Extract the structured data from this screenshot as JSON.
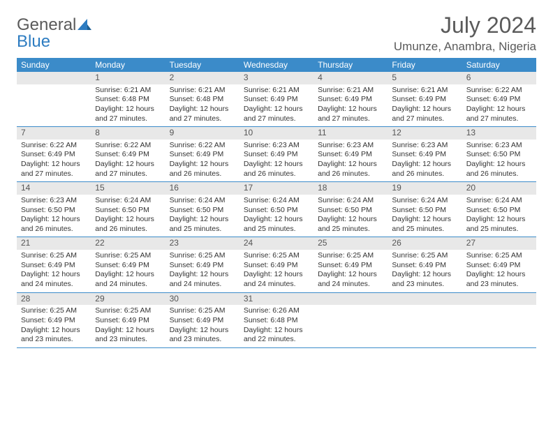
{
  "logo": {
    "word1": "General",
    "word2": "Blue"
  },
  "title": "July 2024",
  "location": "Umunze, Anambra, Nigeria",
  "colors": {
    "header_bg": "#3b8bc9",
    "header_text": "#ffffff",
    "daynum_bg": "#e8e8e8",
    "week_divider": "#3b8bc9",
    "logo_gray": "#5a5a5a",
    "logo_blue": "#2d7cc1",
    "body_text": "#333333",
    "background": "#ffffff"
  },
  "typography": {
    "title_fontsize": 32,
    "location_fontsize": 17,
    "weekday_fontsize": 12,
    "daynum_fontsize": 12,
    "body_fontsize": 10.5,
    "font_family": "Arial"
  },
  "weekdays": [
    "Sunday",
    "Monday",
    "Tuesday",
    "Wednesday",
    "Thursday",
    "Friday",
    "Saturday"
  ],
  "weeks": [
    [
      {
        "n": "",
        "sr": "",
        "ss": "",
        "dl": ""
      },
      {
        "n": "1",
        "sr": "Sunrise: 6:21 AM",
        "ss": "Sunset: 6:48 PM",
        "dl": "Daylight: 12 hours and 27 minutes."
      },
      {
        "n": "2",
        "sr": "Sunrise: 6:21 AM",
        "ss": "Sunset: 6:48 PM",
        "dl": "Daylight: 12 hours and 27 minutes."
      },
      {
        "n": "3",
        "sr": "Sunrise: 6:21 AM",
        "ss": "Sunset: 6:49 PM",
        "dl": "Daylight: 12 hours and 27 minutes."
      },
      {
        "n": "4",
        "sr": "Sunrise: 6:21 AM",
        "ss": "Sunset: 6:49 PM",
        "dl": "Daylight: 12 hours and 27 minutes."
      },
      {
        "n": "5",
        "sr": "Sunrise: 6:21 AM",
        "ss": "Sunset: 6:49 PM",
        "dl": "Daylight: 12 hours and 27 minutes."
      },
      {
        "n": "6",
        "sr": "Sunrise: 6:22 AM",
        "ss": "Sunset: 6:49 PM",
        "dl": "Daylight: 12 hours and 27 minutes."
      }
    ],
    [
      {
        "n": "7",
        "sr": "Sunrise: 6:22 AM",
        "ss": "Sunset: 6:49 PM",
        "dl": "Daylight: 12 hours and 27 minutes."
      },
      {
        "n": "8",
        "sr": "Sunrise: 6:22 AM",
        "ss": "Sunset: 6:49 PM",
        "dl": "Daylight: 12 hours and 27 minutes."
      },
      {
        "n": "9",
        "sr": "Sunrise: 6:22 AM",
        "ss": "Sunset: 6:49 PM",
        "dl": "Daylight: 12 hours and 26 minutes."
      },
      {
        "n": "10",
        "sr": "Sunrise: 6:23 AM",
        "ss": "Sunset: 6:49 PM",
        "dl": "Daylight: 12 hours and 26 minutes."
      },
      {
        "n": "11",
        "sr": "Sunrise: 6:23 AM",
        "ss": "Sunset: 6:49 PM",
        "dl": "Daylight: 12 hours and 26 minutes."
      },
      {
        "n": "12",
        "sr": "Sunrise: 6:23 AM",
        "ss": "Sunset: 6:49 PM",
        "dl": "Daylight: 12 hours and 26 minutes."
      },
      {
        "n": "13",
        "sr": "Sunrise: 6:23 AM",
        "ss": "Sunset: 6:50 PM",
        "dl": "Daylight: 12 hours and 26 minutes."
      }
    ],
    [
      {
        "n": "14",
        "sr": "Sunrise: 6:23 AM",
        "ss": "Sunset: 6:50 PM",
        "dl": "Daylight: 12 hours and 26 minutes."
      },
      {
        "n": "15",
        "sr": "Sunrise: 6:24 AM",
        "ss": "Sunset: 6:50 PM",
        "dl": "Daylight: 12 hours and 26 minutes."
      },
      {
        "n": "16",
        "sr": "Sunrise: 6:24 AM",
        "ss": "Sunset: 6:50 PM",
        "dl": "Daylight: 12 hours and 25 minutes."
      },
      {
        "n": "17",
        "sr": "Sunrise: 6:24 AM",
        "ss": "Sunset: 6:50 PM",
        "dl": "Daylight: 12 hours and 25 minutes."
      },
      {
        "n": "18",
        "sr": "Sunrise: 6:24 AM",
        "ss": "Sunset: 6:50 PM",
        "dl": "Daylight: 12 hours and 25 minutes."
      },
      {
        "n": "19",
        "sr": "Sunrise: 6:24 AM",
        "ss": "Sunset: 6:50 PM",
        "dl": "Daylight: 12 hours and 25 minutes."
      },
      {
        "n": "20",
        "sr": "Sunrise: 6:24 AM",
        "ss": "Sunset: 6:50 PM",
        "dl": "Daylight: 12 hours and 25 minutes."
      }
    ],
    [
      {
        "n": "21",
        "sr": "Sunrise: 6:25 AM",
        "ss": "Sunset: 6:49 PM",
        "dl": "Daylight: 12 hours and 24 minutes."
      },
      {
        "n": "22",
        "sr": "Sunrise: 6:25 AM",
        "ss": "Sunset: 6:49 PM",
        "dl": "Daylight: 12 hours and 24 minutes."
      },
      {
        "n": "23",
        "sr": "Sunrise: 6:25 AM",
        "ss": "Sunset: 6:49 PM",
        "dl": "Daylight: 12 hours and 24 minutes."
      },
      {
        "n": "24",
        "sr": "Sunrise: 6:25 AM",
        "ss": "Sunset: 6:49 PM",
        "dl": "Daylight: 12 hours and 24 minutes."
      },
      {
        "n": "25",
        "sr": "Sunrise: 6:25 AM",
        "ss": "Sunset: 6:49 PM",
        "dl": "Daylight: 12 hours and 24 minutes."
      },
      {
        "n": "26",
        "sr": "Sunrise: 6:25 AM",
        "ss": "Sunset: 6:49 PM",
        "dl": "Daylight: 12 hours and 23 minutes."
      },
      {
        "n": "27",
        "sr": "Sunrise: 6:25 AM",
        "ss": "Sunset: 6:49 PM",
        "dl": "Daylight: 12 hours and 23 minutes."
      }
    ],
    [
      {
        "n": "28",
        "sr": "Sunrise: 6:25 AM",
        "ss": "Sunset: 6:49 PM",
        "dl": "Daylight: 12 hours and 23 minutes."
      },
      {
        "n": "29",
        "sr": "Sunrise: 6:25 AM",
        "ss": "Sunset: 6:49 PM",
        "dl": "Daylight: 12 hours and 23 minutes."
      },
      {
        "n": "30",
        "sr": "Sunrise: 6:25 AM",
        "ss": "Sunset: 6:49 PM",
        "dl": "Daylight: 12 hours and 23 minutes."
      },
      {
        "n": "31",
        "sr": "Sunrise: 6:26 AM",
        "ss": "Sunset: 6:48 PM",
        "dl": "Daylight: 12 hours and 22 minutes."
      },
      {
        "n": "",
        "sr": "",
        "ss": "",
        "dl": ""
      },
      {
        "n": "",
        "sr": "",
        "ss": "",
        "dl": ""
      },
      {
        "n": "",
        "sr": "",
        "ss": "",
        "dl": ""
      }
    ]
  ]
}
